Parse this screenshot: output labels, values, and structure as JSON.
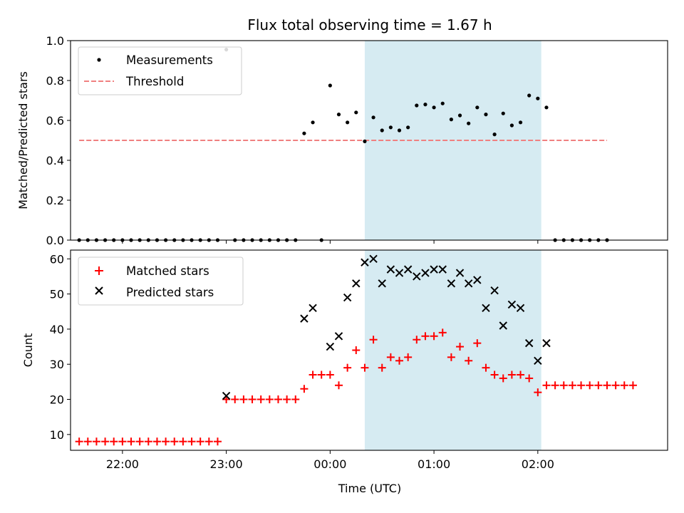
{
  "chart_data": [
    {
      "type": "scatter",
      "title": "Flux total observing time = 1.67 h",
      "ylabel": "Matched/Predicted stars",
      "xlabel": "",
      "ylim": [
        0,
        1.0
      ],
      "yticks": [
        "0.0",
        "0.2",
        "0.4",
        "0.6",
        "0.8",
        "1.0"
      ],
      "legend_position": "top-left",
      "grid": false,
      "shaded_interval": {
        "from": "00:20",
        "to": "02:02",
        "color": "#add8e6"
      },
      "threshold": {
        "name": "Threshold",
        "value": 0.5,
        "from": "21:35",
        "to": "02:40",
        "color": "#f08080",
        "style": "dashed"
      },
      "series": [
        {
          "name": "Measurements",
          "color": "#000000",
          "marker": "dot",
          "points": [
            [
              "21:35",
              0
            ],
            [
              "21:40",
              0
            ],
            [
              "21:45",
              0
            ],
            [
              "21:50",
              0
            ],
            [
              "21:55",
              0
            ],
            [
              "22:00",
              0
            ],
            [
              "22:05",
              0
            ],
            [
              "22:10",
              0
            ],
            [
              "22:15",
              0
            ],
            [
              "22:20",
              0
            ],
            [
              "22:25",
              0
            ],
            [
              "22:30",
              0
            ],
            [
              "22:35",
              0
            ],
            [
              "22:40",
              0
            ],
            [
              "22:45",
              0
            ],
            [
              "22:50",
              0
            ],
            [
              "22:55",
              0
            ],
            [
              "23:00",
              0.955
            ],
            [
              "23:05",
              0
            ],
            [
              "23:10",
              0
            ],
            [
              "23:15",
              0
            ],
            [
              "23:20",
              0
            ],
            [
              "23:25",
              0
            ],
            [
              "23:30",
              0
            ],
            [
              "23:35",
              0
            ],
            [
              "23:40",
              0
            ],
            [
              "23:45",
              0.535
            ],
            [
              "23:50",
              0.59
            ],
            [
              "23:55",
              0
            ],
            [
              "00:00",
              0.775
            ],
            [
              "00:05",
              0.63
            ],
            [
              "00:10",
              0.59
            ],
            [
              "00:15",
              0.64
            ],
            [
              "00:20",
              0.495
            ],
            [
              "00:25",
              0.615
            ],
            [
              "00:30",
              0.55
            ],
            [
              "00:35",
              0.565
            ],
            [
              "00:40",
              0.55
            ],
            [
              "00:45",
              0.565
            ],
            [
              "00:50",
              0.675
            ],
            [
              "00:55",
              0.68
            ],
            [
              "01:00",
              0.665
            ],
            [
              "01:05",
              0.685
            ],
            [
              "01:10",
              0.605
            ],
            [
              "01:15",
              0.625
            ],
            [
              "01:20",
              0.585
            ],
            [
              "01:25",
              0.665
            ],
            [
              "01:30",
              0.63
            ],
            [
              "01:35",
              0.53
            ],
            [
              "01:40",
              0.635
            ],
            [
              "01:45",
              0.575
            ],
            [
              "01:50",
              0.59
            ],
            [
              "01:55",
              0.725
            ],
            [
              "02:00",
              0.71
            ],
            [
              "02:05",
              0.665
            ],
            [
              "02:10",
              0
            ],
            [
              "02:15",
              0
            ],
            [
              "02:20",
              0
            ],
            [
              "02:25",
              0
            ],
            [
              "02:30",
              0
            ],
            [
              "02:35",
              0
            ],
            [
              "02:40",
              0
            ]
          ]
        }
      ]
    },
    {
      "type": "scatter",
      "title": "",
      "ylabel": "Count",
      "xlabel": "Time (UTC)",
      "ylim": [
        5.5,
        62.5
      ],
      "yticks": [
        "10",
        "20",
        "30",
        "40",
        "50",
        "60"
      ],
      "xticks": [
        "22:00",
        "23:00",
        "00:00",
        "01:00",
        "02:00"
      ],
      "legend_position": "top-left",
      "grid": false,
      "shaded_interval": {
        "from": "00:20",
        "to": "02:02",
        "color": "#add8e6"
      },
      "series": [
        {
          "name": "Matched stars",
          "color": "#ff0000",
          "marker": "plus",
          "points": [
            [
              "21:35",
              8
            ],
            [
              "21:40",
              8
            ],
            [
              "21:45",
              8
            ],
            [
              "21:50",
              8
            ],
            [
              "21:55",
              8
            ],
            [
              "22:00",
              8
            ],
            [
              "22:05",
              8
            ],
            [
              "22:10",
              8
            ],
            [
              "22:15",
              8
            ],
            [
              "22:20",
              8
            ],
            [
              "22:25",
              8
            ],
            [
              "22:30",
              8
            ],
            [
              "22:35",
              8
            ],
            [
              "22:40",
              8
            ],
            [
              "22:45",
              8
            ],
            [
              "22:50",
              8
            ],
            [
              "22:55",
              8
            ],
            [
              "23:00",
              20
            ],
            [
              "23:05",
              20
            ],
            [
              "23:10",
              20
            ],
            [
              "23:15",
              20
            ],
            [
              "23:20",
              20
            ],
            [
              "23:25",
              20
            ],
            [
              "23:30",
              20
            ],
            [
              "23:35",
              20
            ],
            [
              "23:40",
              20
            ],
            [
              "23:45",
              23
            ],
            [
              "23:50",
              27
            ],
            [
              "23:55",
              27
            ],
            [
              "00:00",
              27
            ],
            [
              "00:05",
              24
            ],
            [
              "00:10",
              29
            ],
            [
              "00:15",
              34
            ],
            [
              "00:20",
              29
            ],
            [
              "00:25",
              37
            ],
            [
              "00:30",
              29
            ],
            [
              "00:35",
              32
            ],
            [
              "00:40",
              31
            ],
            [
              "00:45",
              32
            ],
            [
              "00:50",
              37
            ],
            [
              "00:55",
              38
            ],
            [
              "01:00",
              38
            ],
            [
              "01:05",
              39
            ],
            [
              "01:10",
              32
            ],
            [
              "01:15",
              35
            ],
            [
              "01:20",
              31
            ],
            [
              "01:25",
              36
            ],
            [
              "01:30",
              29
            ],
            [
              "01:35",
              27
            ],
            [
              "01:40",
              26
            ],
            [
              "01:45",
              27
            ],
            [
              "01:50",
              27
            ],
            [
              "01:55",
              26
            ],
            [
              "02:00",
              22
            ],
            [
              "02:05",
              24
            ],
            [
              "02:10",
              24
            ],
            [
              "02:15",
              24
            ],
            [
              "02:20",
              24
            ],
            [
              "02:25",
              24
            ],
            [
              "02:30",
              24
            ],
            [
              "02:35",
              24
            ],
            [
              "02:40",
              24
            ],
            [
              "02:45",
              24
            ],
            [
              "02:50",
              24
            ],
            [
              "02:55",
              24
            ]
          ]
        },
        {
          "name": "Predicted stars",
          "color": "#000000",
          "marker": "x",
          "points": [
            [
              "23:00",
              21
            ],
            [
              "23:45",
              43
            ],
            [
              "23:50",
              46
            ],
            [
              "00:00",
              35
            ],
            [
              "00:05",
              38
            ],
            [
              "00:10",
              49
            ],
            [
              "00:15",
              53
            ],
            [
              "00:20",
              59
            ],
            [
              "00:25",
              60
            ],
            [
              "00:30",
              53
            ],
            [
              "00:35",
              57
            ],
            [
              "00:40",
              56
            ],
            [
              "00:45",
              57
            ],
            [
              "00:50",
              55
            ],
            [
              "00:55",
              56
            ],
            [
              "01:00",
              57
            ],
            [
              "01:05",
              57
            ],
            [
              "01:10",
              53
            ],
            [
              "01:15",
              56
            ],
            [
              "01:20",
              53
            ],
            [
              "01:25",
              54
            ],
            [
              "01:30",
              46
            ],
            [
              "01:35",
              51
            ],
            [
              "01:40",
              41
            ],
            [
              "01:45",
              47
            ],
            [
              "01:50",
              46
            ],
            [
              "01:55",
              36
            ],
            [
              "02:00",
              31
            ],
            [
              "02:05",
              36
            ]
          ]
        }
      ]
    }
  ]
}
